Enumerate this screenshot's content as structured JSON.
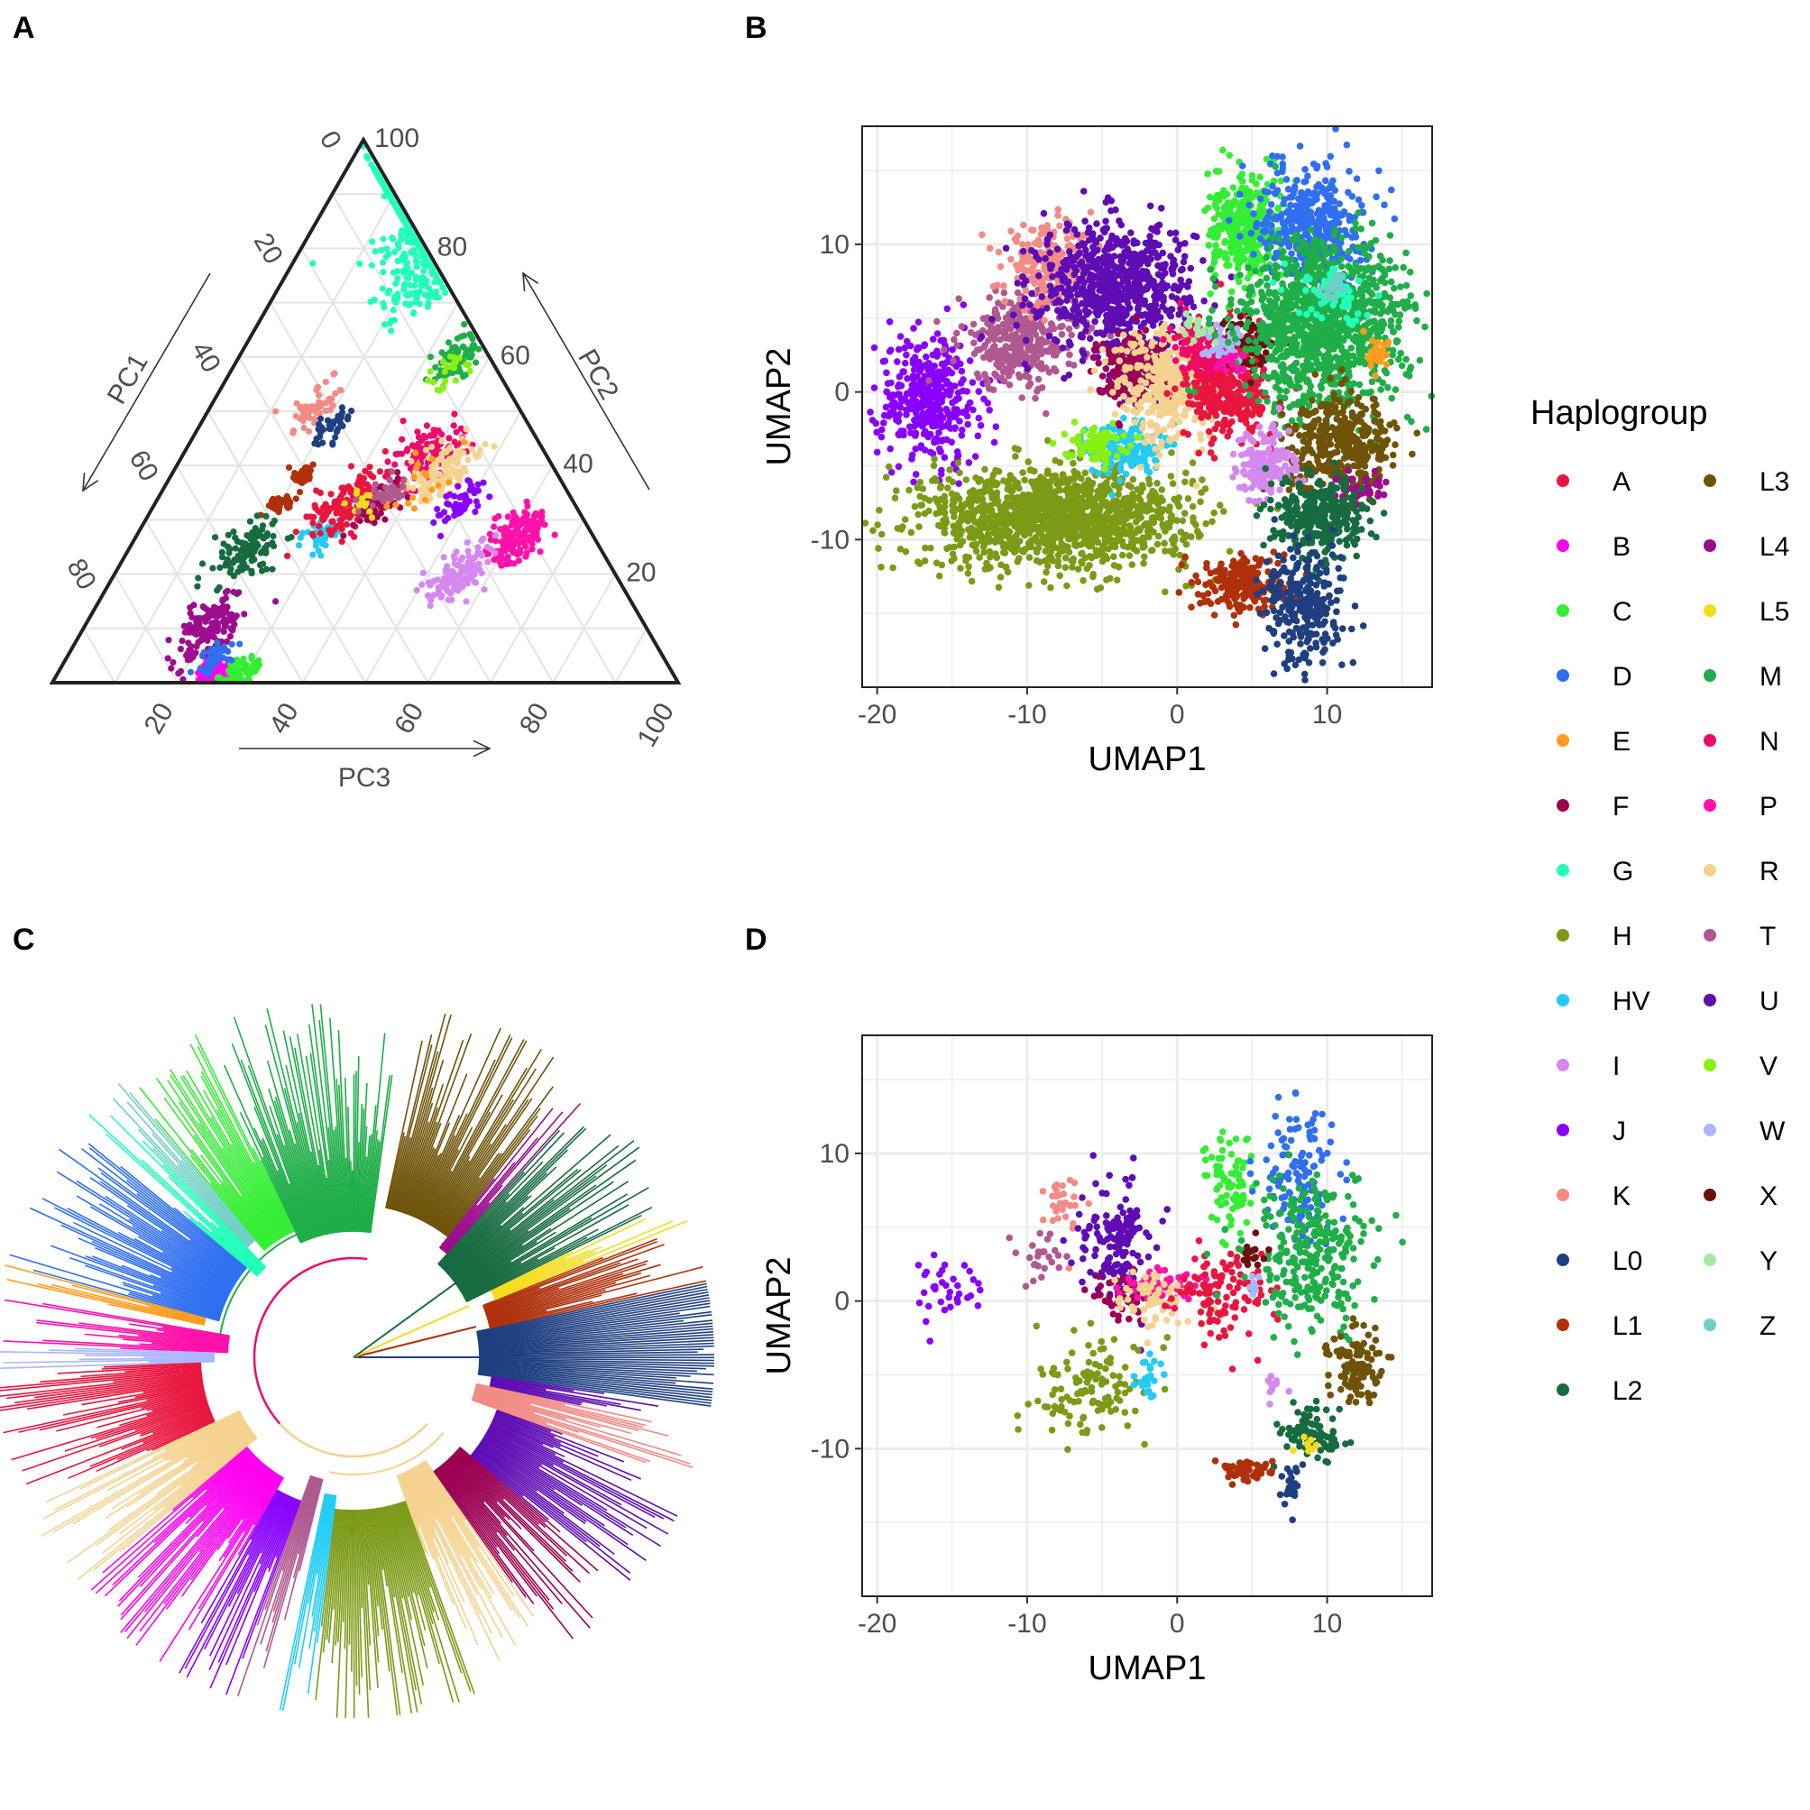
{
  "panels": {
    "A": "A",
    "B": "B",
    "C": "C",
    "D": "D"
  },
  "chart_data": [
    {
      "panel": "A",
      "type": "scatter",
      "subtype": "ternary",
      "axes": {
        "top": {
          "label": "PC2",
          "ticks": [
            20,
            40,
            60,
            80,
            100
          ]
        },
        "left": {
          "label": "PC1",
          "ticks": [
            20,
            40,
            60,
            80,
            100
          ]
        },
        "bottom": {
          "label": "PC3",
          "ticks": [
            20,
            40,
            60,
            80,
            100
          ]
        }
      },
      "grid": true,
      "clusters": [
        {
          "group": "G",
          "pc2": 85,
          "pc3": 20,
          "spread": 5,
          "n": 420
        },
        {
          "group": "G",
          "pc2": 73,
          "pc3": 22,
          "spread": 3,
          "n": 80
        },
        {
          "group": "M",
          "pc2": 60,
          "pc3": 35,
          "spread": 2,
          "n": 70
        },
        {
          "group": "V",
          "pc2": 57,
          "pc3": 35,
          "spread": 2,
          "n": 25
        },
        {
          "group": "K",
          "pc2": 51,
          "pc3": 17,
          "spread": 2,
          "n": 50
        },
        {
          "group": "L0",
          "pc2": 47,
          "pc3": 21,
          "spread": 1.5,
          "n": 35
        },
        {
          "group": "L1",
          "pc2": 38,
          "pc3": 21,
          "spread": 1.2,
          "n": 30
        },
        {
          "group": "L1",
          "pc2": 33,
          "pc3": 20,
          "spread": 1.2,
          "n": 35
        },
        {
          "group": "L2",
          "pc2": 24,
          "pc3": 19,
          "spread": 3,
          "n": 110
        },
        {
          "group": "L4",
          "pc2": 10,
          "pc3": 20,
          "spread": 3,
          "n": 150
        },
        {
          "group": "B",
          "pc2": 2,
          "pc3": 25,
          "spread": 1.8,
          "n": 80
        },
        {
          "group": "C",
          "pc2": 2,
          "pc3": 29,
          "spread": 1.8,
          "n": 60
        },
        {
          "group": "D",
          "pc2": 5,
          "pc3": 24,
          "spread": 1.5,
          "n": 40
        },
        {
          "group": "HV",
          "pc2": 27,
          "pc3": 30,
          "spread": 2,
          "n": 35
        },
        {
          "group": "A",
          "pc2": 33,
          "pc3": 31,
          "spread": 3,
          "n": 150
        },
        {
          "group": "N",
          "pc2": 42,
          "pc3": 39,
          "spread": 3,
          "n": 130
        },
        {
          "group": "F",
          "pc2": 33,
          "pc3": 36,
          "spread": 2,
          "n": 50
        },
        {
          "group": "R",
          "pc2": 39,
          "pc3": 43,
          "spread": 3,
          "n": 120
        },
        {
          "group": "J",
          "pc2": 33,
          "pc3": 49,
          "spread": 2,
          "n": 50
        },
        {
          "group": "P",
          "pc2": 27,
          "pc3": 61,
          "spread": 2.5,
          "n": 170
        },
        {
          "group": "I",
          "pc2": 20,
          "pc3": 55,
          "spread": 2.5,
          "n": 130
        },
        {
          "group": "E",
          "pc2": 37,
          "pc3": 41,
          "spread": 3,
          "n": 20
        },
        {
          "group": "L5",
          "pc2": 33,
          "pc3": 33,
          "spread": 2,
          "n": 15
        },
        {
          "group": "T",
          "pc2": 35,
          "pc3": 36,
          "spread": 2,
          "n": 30
        }
      ]
    },
    {
      "panel": "B",
      "type": "scatter",
      "xlabel": "UMAP1",
      "ylabel": "UMAP2",
      "xlim": [
        -21,
        17
      ],
      "ylim": [
        -20,
        18
      ],
      "xticks": [
        -20,
        -10,
        0,
        10
      ],
      "yticks": [
        -10,
        0,
        10
      ],
      "grid": true,
      "clusters": [
        {
          "group": "J",
          "x": -16.5,
          "y": -0.5,
          "sx": 1.7,
          "sy": 2.2,
          "n": 380
        },
        {
          "group": "T",
          "x": -10.5,
          "y": 3.5,
          "sx": 2,
          "sy": 1.6,
          "n": 330
        },
        {
          "group": "K",
          "x": -8.5,
          "y": 8.5,
          "sx": 1.5,
          "sy": 1.3,
          "n": 240
        },
        {
          "group": "U",
          "x": -4,
          "y": 7,
          "sx": 2.5,
          "sy": 2.2,
          "n": 720
        },
        {
          "group": "H",
          "x": -8,
          "y": -8.5,
          "sx": 4.5,
          "sy": 1.7,
          "n": 1300
        },
        {
          "group": "HV",
          "x": -3.5,
          "y": -3.8,
          "sx": 1.2,
          "sy": 0.9,
          "n": 140
        },
        {
          "group": "V",
          "x": -5.5,
          "y": -3.5,
          "sx": 1,
          "sy": 0.6,
          "n": 80
        },
        {
          "group": "F",
          "x": -3,
          "y": 1.5,
          "sx": 1.2,
          "sy": 1.2,
          "n": 220
        },
        {
          "group": "R",
          "x": -0.5,
          "y": 0.5,
          "sx": 1.8,
          "sy": 2,
          "n": 350
        },
        {
          "group": "A",
          "x": 3.5,
          "y": 0.5,
          "sx": 1.4,
          "sy": 1.8,
          "n": 420
        },
        {
          "group": "N",
          "x": 1.5,
          "y": 3,
          "sx": 1.1,
          "sy": 0.9,
          "n": 80
        },
        {
          "group": "X",
          "x": 5,
          "y": 3.5,
          "sx": 0.9,
          "sy": 1,
          "n": 80
        },
        {
          "group": "W",
          "x": 3.3,
          "y": 3.2,
          "sx": 0.6,
          "sy": 0.7,
          "n": 50
        },
        {
          "group": "Y",
          "x": 1.2,
          "y": 4.5,
          "sx": 0.5,
          "sy": 0.4,
          "n": 20
        },
        {
          "group": "C",
          "x": 4.5,
          "y": 11,
          "sx": 1.2,
          "sy": 1.7,
          "n": 330
        },
        {
          "group": "D",
          "x": 9,
          "y": 11.5,
          "sx": 1.7,
          "sy": 2,
          "n": 380
        },
        {
          "group": "M",
          "x": 9.8,
          "y": 4.5,
          "sx": 2.8,
          "sy": 2.8,
          "n": 1100
        },
        {
          "group": "G",
          "x": 10.5,
          "y": 6.5,
          "sx": 1.3,
          "sy": 0.9,
          "n": 60
        },
        {
          "group": "E",
          "x": 13.5,
          "y": 2.5,
          "sx": 0.5,
          "sy": 0.5,
          "n": 30
        },
        {
          "group": "L3",
          "x": 11,
          "y": -3.5,
          "sx": 1.8,
          "sy": 1.6,
          "n": 380
        },
        {
          "group": "L4",
          "x": 12,
          "y": -6.5,
          "sx": 1,
          "sy": 0.5,
          "n": 40
        },
        {
          "group": "I",
          "x": 6,
          "y": -5,
          "sx": 1,
          "sy": 1.2,
          "n": 160
        },
        {
          "group": "L2",
          "x": 9.5,
          "y": -8.5,
          "sx": 1.5,
          "sy": 1.4,
          "n": 320
        },
        {
          "group": "L1",
          "x": 4.5,
          "y": -13,
          "sx": 1.4,
          "sy": 0.9,
          "n": 220
        },
        {
          "group": "L0",
          "x": 8.5,
          "y": -14.5,
          "sx": 1.3,
          "sy": 2,
          "n": 260
        },
        {
          "group": "P",
          "x": 3.5,
          "y": 2,
          "sx": 0.6,
          "sy": 0.5,
          "n": 20
        },
        {
          "group": "Z",
          "x": 10.5,
          "y": 7,
          "sx": 0.5,
          "sy": 0.4,
          "n": 20
        }
      ]
    },
    {
      "panel": "C",
      "type": "other",
      "subtype": "circular-tree",
      "root_angle_deg": 0,
      "clades": [
        {
          "group": "L0",
          "start": -8,
          "end": 12
        },
        {
          "group": "L1",
          "start": 12,
          "end": 22
        },
        {
          "group": "L5",
          "start": 22,
          "end": 26
        },
        {
          "group": "L2",
          "start": 26,
          "end": 48
        },
        {
          "group": "L4",
          "start": 48,
          "end": 52
        },
        {
          "group": "L3",
          "start": 52,
          "end": 78
        },
        {
          "group": "M",
          "start": 82,
          "end": 115
        },
        {
          "group": "C",
          "start": 115,
          "end": 130
        },
        {
          "group": "Z",
          "start": 130,
          "end": 134
        },
        {
          "group": "G",
          "start": 134,
          "end": 140
        },
        {
          "group": "D",
          "start": 140,
          "end": 165
        },
        {
          "group": "E",
          "start": 165,
          "end": 168
        },
        {
          "group": "P",
          "start": 170,
          "end": 178
        },
        {
          "group": "W",
          "start": 178,
          "end": 182
        },
        {
          "group": "A",
          "start": 182,
          "end": 205
        },
        {
          "group": "R",
          "start": 205,
          "end": 220
        },
        {
          "group": "B",
          "start": 220,
          "end": 240
        },
        {
          "group": "J",
          "start": 240,
          "end": 250
        },
        {
          "group": "T",
          "start": 250,
          "end": 256
        },
        {
          "group": "HV",
          "start": 258,
          "end": 263
        },
        {
          "group": "H",
          "start": 263,
          "end": 290
        },
        {
          "group": "R",
          "start": 290,
          "end": 305
        },
        {
          "group": "F",
          "start": 305,
          "end": 320
        },
        {
          "group": "U",
          "start": 320,
          "end": 340
        },
        {
          "group": "K",
          "start": 340,
          "end": 348
        },
        {
          "group": "U",
          "start": 348,
          "end": 352
        }
      ]
    },
    {
      "panel": "D",
      "type": "scatter",
      "xlabel": "UMAP1",
      "ylabel": "UMAP2",
      "xlim": [
        -21,
        17
      ],
      "ylim": [
        -20,
        18
      ],
      "xticks": [
        -20,
        -10,
        0,
        10
      ],
      "yticks": [
        -10,
        0,
        10
      ],
      "grid": true,
      "background_color": "#d9d9d9",
      "clusters": [
        {
          "group": "J",
          "x": -15.5,
          "y": 1,
          "sx": 0.9,
          "sy": 1,
          "n": 35
        },
        {
          "group": "T",
          "x": -9,
          "y": 3,
          "sx": 0.7,
          "sy": 0.9,
          "n": 25
        },
        {
          "group": "K",
          "x": -7.5,
          "y": 7,
          "sx": 0.7,
          "sy": 1.2,
          "n": 30
        },
        {
          "group": "U",
          "x": -4,
          "y": 4,
          "sx": 1.2,
          "sy": 2,
          "n": 140
        },
        {
          "group": "F",
          "x": -3.5,
          "y": 0.5,
          "sx": 1,
          "sy": 0.8,
          "n": 50
        },
        {
          "group": "P",
          "x": -1,
          "y": 1,
          "sx": 1.3,
          "sy": 0.6,
          "n": 60
        },
        {
          "group": "R",
          "x": -1.5,
          "y": 0,
          "sx": 1.5,
          "sy": 1,
          "n": 60
        },
        {
          "group": "A",
          "x": 3,
          "y": 0.5,
          "sx": 1.5,
          "sy": 1.5,
          "n": 110
        },
        {
          "group": "H",
          "x": -5.5,
          "y": -6,
          "sx": 2,
          "sy": 1.5,
          "n": 120
        },
        {
          "group": "HV",
          "x": -2,
          "y": -5.5,
          "sx": 0.4,
          "sy": 0.8,
          "n": 25
        },
        {
          "group": "C",
          "x": 3.5,
          "y": 8,
          "sx": 0.8,
          "sy": 2,
          "n": 80
        },
        {
          "group": "D",
          "x": 8,
          "y": 9,
          "sx": 1.3,
          "sy": 2.5,
          "n": 120
        },
        {
          "group": "M",
          "x": 9,
          "y": 3,
          "sx": 2,
          "sy": 2.5,
          "n": 280
        },
        {
          "group": "L3",
          "x": 12,
          "y": -4.5,
          "sx": 0.9,
          "sy": 1.3,
          "n": 110
        },
        {
          "group": "L2",
          "x": 9,
          "y": -9,
          "sx": 1,
          "sy": 0.8,
          "n": 90
        },
        {
          "group": "L5",
          "x": 8.5,
          "y": -9.5,
          "sx": 0.3,
          "sy": 0.3,
          "n": 8
        },
        {
          "group": "L1",
          "x": 4.5,
          "y": -11.5,
          "sx": 1,
          "sy": 0.4,
          "n": 50
        },
        {
          "group": "L0",
          "x": 7.5,
          "y": -12.5,
          "sx": 0.4,
          "sy": 0.8,
          "n": 25
        },
        {
          "group": "I",
          "x": 6.5,
          "y": -6,
          "sx": 0.4,
          "sy": 0.6,
          "n": 10
        },
        {
          "group": "X",
          "x": 5,
          "y": 3,
          "sx": 0.4,
          "sy": 0.6,
          "n": 15
        },
        {
          "group": "W",
          "x": 5,
          "y": 1,
          "sx": 0.4,
          "sy": 0.4,
          "n": 8
        }
      ]
    }
  ],
  "legend": {
    "title": "Haplogroup",
    "columns": 2,
    "items": [
      {
        "label": "A",
        "color": "#e8163e"
      },
      {
        "label": "B",
        "color": "#ff00f0"
      },
      {
        "label": "C",
        "color": "#33ee33"
      },
      {
        "label": "D",
        "color": "#2f6ff0"
      },
      {
        "label": "E",
        "color": "#ff9c1f"
      },
      {
        "label": "F",
        "color": "#9b0052"
      },
      {
        "label": "G",
        "color": "#22ffbb"
      },
      {
        "label": "H",
        "color": "#7c9a16"
      },
      {
        "label": "HV",
        "color": "#22ccf5"
      },
      {
        "label": "I",
        "color": "#d589f0"
      },
      {
        "label": "J",
        "color": "#8800ff"
      },
      {
        "label": "K",
        "color": "#f28b86"
      },
      {
        "label": "L0",
        "color": "#1f3f80"
      },
      {
        "label": "L1",
        "color": "#b0300c"
      },
      {
        "label": "L2",
        "color": "#176b40"
      },
      {
        "label": "L3",
        "color": "#6e5308"
      },
      {
        "label": "L4",
        "color": "#9d0c8f"
      },
      {
        "label": "L5",
        "color": "#f5dc1a"
      },
      {
        "label": "M",
        "color": "#1fae48"
      },
      {
        "label": "N",
        "color": "#ee0a6a"
      },
      {
        "label": "P",
        "color": "#ff11aa"
      },
      {
        "label": "R",
        "color": "#f5d28f"
      },
      {
        "label": "T",
        "color": "#b05890"
      },
      {
        "label": "U",
        "color": "#5e0cb3"
      },
      {
        "label": "V",
        "color": "#88f012"
      },
      {
        "label": "W",
        "color": "#aab6ff"
      },
      {
        "label": "X",
        "color": "#6b1010"
      },
      {
        "label": "Y",
        "color": "#a4e8a4"
      },
      {
        "label": "Z",
        "color": "#6fcfc5"
      }
    ]
  }
}
